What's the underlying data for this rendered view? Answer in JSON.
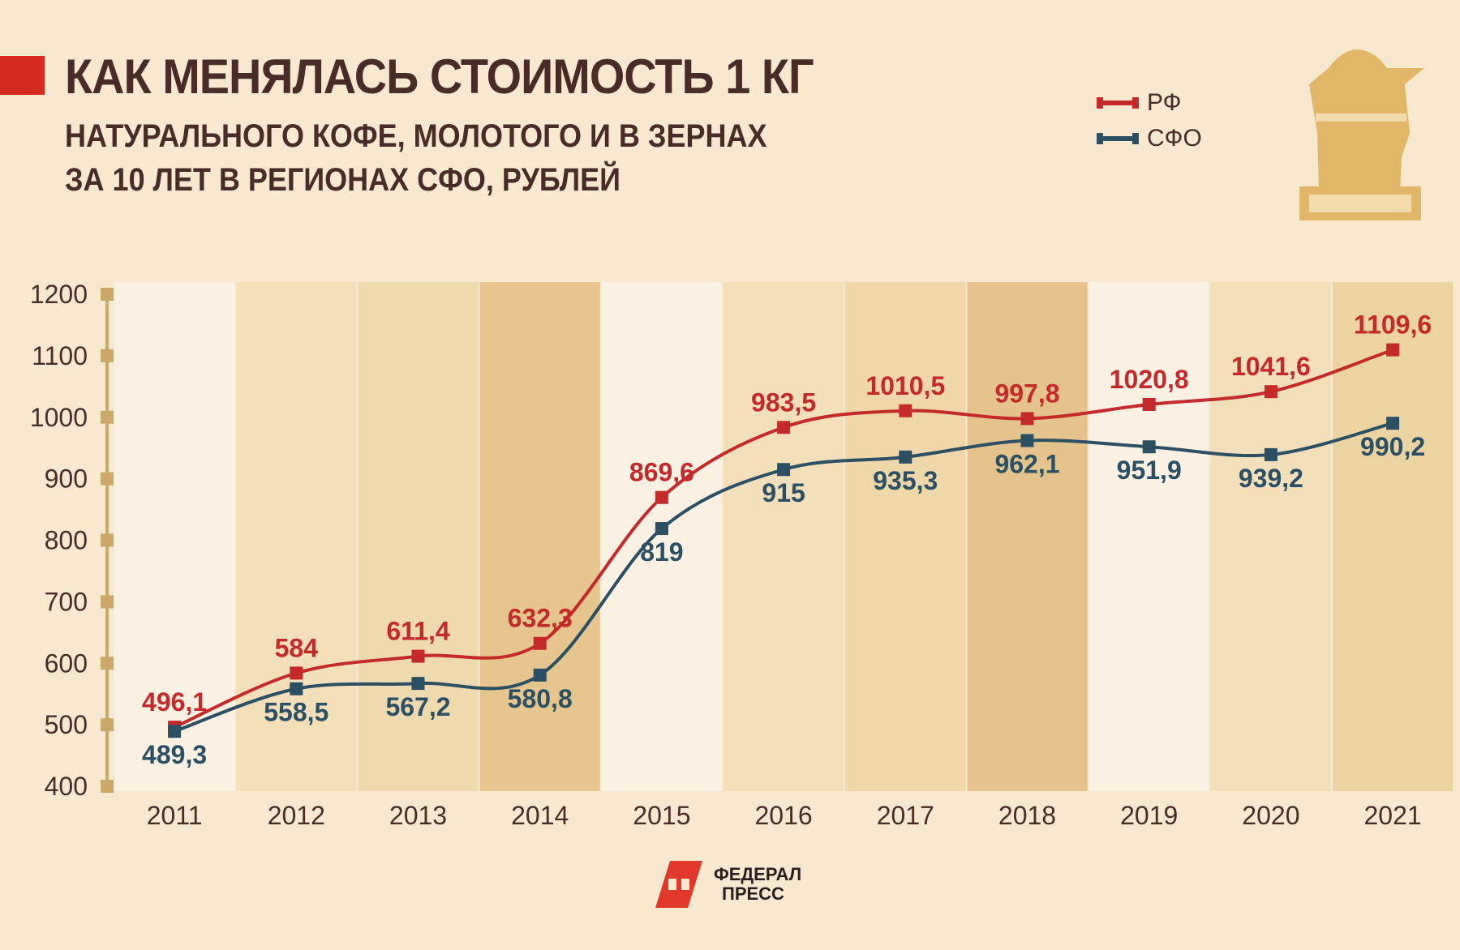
{
  "header": {
    "title": "КАК МЕНЯЛАСЬ СТОИМОСТЬ 1 КГ",
    "subtitle_line1": "НАТУРАЛЬНОГО КОФЕ, МОЛОТОГО И В ЗЕРНАХ",
    "subtitle_line2": "ЗА 10 ЛЕТ В РЕГИОНАХ СФО, РУБЛЕЙ"
  },
  "logo": {
    "line1": "ФЕДЕРАЛ",
    "line2": "ПРЕСС"
  },
  "colors": {
    "rf": "#c42a2a",
    "sfo": "#2b4f63",
    "accent": "#d42a20",
    "axis": "#c9a96a",
    "icon": "#e0b766"
  },
  "chart_data": {
    "type": "line",
    "title": "КАК МЕНЯЛАСЬ СТОИМОСТЬ 1 КГ НАТУРАЛЬНОГО КОФЕ, МОЛОТОГО И В ЗЕРНАХ ЗА 10 ЛЕТ В РЕГИОНАХ СФО, РУБЛЕЙ",
    "xlabel": "",
    "ylabel": "",
    "ylim": [
      400,
      1200
    ],
    "yticks": [
      "400",
      "500",
      "600",
      "700",
      "800",
      "900",
      "1000",
      "1100",
      "1200"
    ],
    "categories": [
      "2011",
      "2012",
      "2013",
      "2014",
      "2015",
      "2016",
      "2017",
      "2018",
      "2019",
      "2020",
      "2021"
    ],
    "legend_position": "top-right",
    "series": [
      {
        "name": "РФ",
        "values": [
          496.1,
          584,
          611.4,
          632.3,
          869.6,
          983.5,
          1010.5,
          997.8,
          1020.8,
          1041.6,
          1109.6
        ],
        "labels": [
          "496,1",
          "584",
          "611,4",
          "632,3",
          "869,6",
          "983,5",
          "1010,5",
          "997,8",
          "1020,8",
          "1041,6",
          "1109,6"
        ]
      },
      {
        "name": "СФО",
        "values": [
          489.3,
          558.5,
          567.2,
          580.8,
          819,
          915,
          935.3,
          962.1,
          951.9,
          939.2,
          990.2
        ],
        "labels": [
          "489,3",
          "558,5",
          "567,2",
          "580,8",
          "819",
          "915",
          "935,3",
          "962,1",
          "951,9",
          "939,2",
          "990,2"
        ]
      }
    ]
  }
}
